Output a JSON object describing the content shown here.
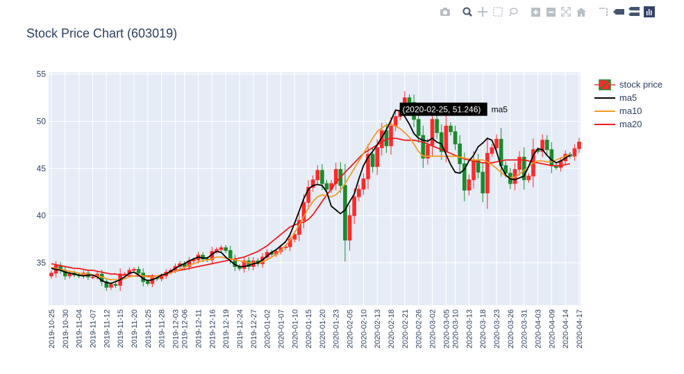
{
  "title": "Stock Price Chart (603019)",
  "modebar": {
    "icons": [
      "camera-icon",
      "zoom-icon",
      "pan-icon",
      "box-select-icon",
      "lasso-icon",
      "zoom-in-icon",
      "zoom-out-icon",
      "autoscale-icon",
      "home-icon",
      "spike-lines-icon",
      "hover-closest-icon",
      "hover-compare-icon",
      "plotly-logo-icon"
    ]
  },
  "colors": {
    "increasing": "#ff2a2a",
    "decreasing": "#1b8a2c",
    "ma5": "#000000",
    "ma10": "#f39a26",
    "ma20": "#ee1b1b",
    "plot_bg": "#e5ecf6",
    "tooltip_bg": "#000000"
  },
  "tooltip": {
    "text": "(2020-02-25, 51.246)",
    "series": "ma5"
  },
  "chart_data": {
    "type": "candlestick",
    "title": "Stock Price Chart (603019)",
    "ylim": [
      30.5,
      55.2
    ],
    "yticks": [
      35,
      40,
      45,
      50,
      55
    ],
    "x_tick_labels": [
      "2019-10-25",
      "2019-10-30",
      "2019-11-04",
      "2019-11-07",
      "2019-11-12",
      "2019-11-15",
      "2019-11-20",
      "2019-11-25",
      "2019-11-28",
      "2019-12-03",
      "2019-12-06",
      "2019-12-11",
      "2019-12-16",
      "2019-12-19",
      "2019-12-24",
      "2019-12-27",
      "2020-01-02",
      "2020-01-07",
      "2020-01-10",
      "2020-01-15",
      "2020-01-20",
      "2020-01-23",
      "2020-02-05",
      "2020-02-10",
      "2020-02-13",
      "2020-02-18",
      "2020-02-21",
      "2020-02-26",
      "2020-03-02",
      "2020-03-05",
      "2020-03-10",
      "2020-03-13",
      "2020-03-18",
      "2020-03-23",
      "2020-03-26",
      "2020-03-31",
      "2020-04-03",
      "2020-04-09",
      "2020-04-14",
      "2020-04-17"
    ],
    "legend": [
      "stock price",
      "ma5",
      "ma10",
      "ma20"
    ],
    "close": [
      33.9,
      34.7,
      34.2,
      33.6,
      33.9,
      33.7,
      33.6,
      33.9,
      33.5,
      33.5,
      33.8,
      33.0,
      32.4,
      32.7,
      32.6,
      33.8,
      33.8,
      34.2,
      34.3,
      33.9,
      33.0,
      32.8,
      33.4,
      33.3,
      33.6,
      34.0,
      34.2,
      34.6,
      34.9,
      34.6,
      35.2,
      35.3,
      35.8,
      35.4,
      35.3,
      36.2,
      36.4,
      36.6,
      36.3,
      35.4,
      34.6,
      34.4,
      35.2,
      34.6,
      35.2,
      34.9,
      35.6,
      36.1,
      35.9,
      36.2,
      36.6,
      36.7,
      37.5,
      38.0,
      39.5,
      41.4,
      43.0,
      43.8,
      44.8,
      43.4,
      42.8,
      43.4,
      44.9,
      43.2,
      37.4,
      40.0,
      42.0,
      42.8,
      43.9,
      46.5,
      45.2,
      47.2,
      49.0,
      47.4,
      49.5,
      50.5,
      51.1,
      52.5,
      52.0,
      50.2,
      48.5,
      46.1,
      47.5,
      50.2,
      48.8,
      46.8,
      49.5,
      48.9,
      47.6,
      45.5,
      42.7,
      43.8,
      45.9,
      44.6,
      42.4,
      46.6,
      47.2,
      48.1,
      45.3,
      44.5,
      43.4,
      44.9,
      46.2,
      43.8,
      44.2,
      47.0,
      46.8,
      48.0,
      47.0,
      45.3,
      45.1,
      45.8,
      46.5,
      46.3,
      47.1,
      47.8
    ],
    "ma5": [
      34.4,
      34.3,
      34.2,
      34.0,
      33.9,
      33.8,
      33.7,
      33.6,
      33.7,
      33.7,
      33.5,
      33.1,
      32.9,
      32.8,
      33.0,
      33.2,
      33.5,
      33.9,
      34.0,
      33.7,
      33.3,
      33.1,
      33.2,
      33.4,
      33.7,
      33.8,
      34.1,
      34.4,
      34.7,
      34.9,
      35.2,
      35.4,
      35.6,
      35.5,
      35.5,
      35.9,
      36.2,
      36.1,
      35.6,
      35.2,
      34.8,
      34.6,
      34.6,
      34.7,
      34.9,
      35.0,
      35.3,
      35.7,
      36.1,
      36.4,
      36.8,
      37.2,
      38.0,
      39.2,
      40.5,
      41.8,
      42.8,
      43.2,
      43.3,
      43.2,
      42.5,
      41.0,
      40.6,
      40.2,
      40.6,
      41.5,
      42.3,
      43.9,
      45.3,
      46.2,
      46.8,
      47.5,
      48.3,
      49.1,
      50.1,
      51.2,
      51.1,
      50.5,
      49.7,
      48.7,
      48.2,
      48.0,
      47.9,
      48.2,
      47.8,
      47.6,
      46.5,
      45.4,
      44.6,
      44.5,
      44.9,
      45.8,
      46.4,
      47.3,
      47.7,
      48.2,
      48.0,
      46.8,
      45.2,
      44.3,
      43.9,
      43.8,
      44.0,
      44.2,
      45.2,
      46.4,
      47.1,
      47.0,
      46.4,
      45.9,
      45.6,
      45.8,
      46.1,
      46.4
    ],
    "ma10": [
      34.5,
      34.4,
      34.3,
      34.2,
      34.1,
      34.0,
      33.9,
      33.8,
      33.8,
      33.7,
      33.6,
      33.5,
      33.3,
      33.2,
      33.2,
      33.2,
      33.3,
      33.5,
      33.6,
      33.7,
      33.6,
      33.5,
      33.5,
      33.6,
      33.7,
      33.8,
      33.9,
      34.1,
      34.3,
      34.5,
      34.7,
      34.9,
      35.1,
      35.2,
      35.3,
      35.4,
      35.6,
      35.6,
      35.5,
      35.4,
      35.3,
      35.2,
      35.1,
      35.0,
      35.0,
      35.0,
      35.1,
      35.3,
      35.6,
      35.9,
      36.3,
      36.8,
      37.4,
      38.2,
      39.0,
      39.9,
      40.8,
      41.5,
      42.0,
      42.2,
      42.1,
      42.0,
      42.2,
      42.7,
      43.4,
      44.2,
      45.0,
      45.8,
      46.6,
      47.4,
      48.2,
      48.9,
      49.3,
      49.6,
      49.7,
      49.5,
      49.2,
      48.8,
      48.3,
      47.6,
      46.8,
      46.3,
      46.3,
      46.3,
      46.3,
      46.3,
      46.3,
      46.3,
      46.3,
      46.2,
      46.1,
      46.0,
      45.9,
      45.9,
      45.9,
      45.7,
      45.4,
      45.0,
      44.6,
      44.2,
      44.0,
      44.1,
      44.4,
      44.8,
      45.2,
      45.6,
      45.8,
      45.8,
      45.7,
      45.7,
      45.9,
      46.1,
      46.3,
      46.5
    ],
    "ma20": [
      34.9,
      34.8,
      34.7,
      34.6,
      34.5,
      34.4,
      34.4,
      34.3,
      34.2,
      34.2,
      34.1,
      34.0,
      33.9,
      33.8,
      33.8,
      33.7,
      33.7,
      33.6,
      33.6,
      33.6,
      33.6,
      33.6,
      33.6,
      33.6,
      33.7,
      33.8,
      34.0,
      34.1,
      34.2,
      34.3,
      34.4,
      34.5,
      34.6,
      34.7,
      34.8,
      34.9,
      35.0,
      35.1,
      35.2,
      35.3,
      35.4,
      35.5,
      35.6,
      35.8,
      36.0,
      36.2,
      36.5,
      36.8,
      37.2,
      37.6,
      38.0,
      38.4,
      38.8,
      39.0,
      39.2,
      39.3,
      39.6,
      40.1,
      40.8,
      41.5,
      42.2,
      42.8,
      43.5,
      44.1,
      44.6,
      45.1,
      45.6,
      46.1,
      46.6,
      46.9,
      47.2,
      47.5,
      47.8,
      48.1,
      48.2,
      48.2,
      48.1,
      48.0,
      48.0,
      48.0,
      47.9,
      47.8,
      47.6,
      47.4,
      47.2,
      47.0,
      46.8,
      46.6,
      46.4,
      46.2,
      46.0,
      45.9,
      45.8,
      45.7,
      45.6,
      45.6,
      45.6,
      45.7,
      45.8,
      45.9,
      45.9,
      45.9,
      45.9,
      45.9,
      45.8,
      45.7,
      45.6,
      45.5,
      45.4,
      45.3,
      45.3,
      45.3,
      45.4,
      45.5
    ]
  }
}
